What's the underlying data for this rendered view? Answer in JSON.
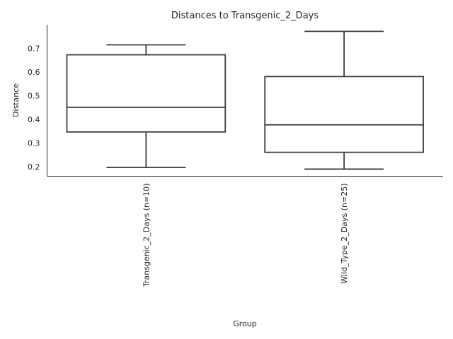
{
  "chart_data": {
    "type": "box",
    "title": "Distances to Transgenic_2_Days",
    "xlabel": "Group",
    "ylabel": "Distance",
    "ylim": [
      0.16,
      0.8
    ],
    "yticks": [
      0.2,
      0.3,
      0.4,
      0.5,
      0.6,
      0.7
    ],
    "categories": [
      "Transgenic_2_Days (n=10)",
      "Wild_Type_2_Days (n=25)"
    ],
    "boxes": [
      {
        "whisker_low": 0.197,
        "q1": 0.347,
        "median": 0.451,
        "q3": 0.673,
        "whisker_high": 0.715
      },
      {
        "whisker_low": 0.19,
        "q1": 0.261,
        "median": 0.377,
        "q3": 0.581,
        "whisker_high": 0.772
      }
    ],
    "grid": false,
    "tick_label_rotation": "vertical"
  }
}
